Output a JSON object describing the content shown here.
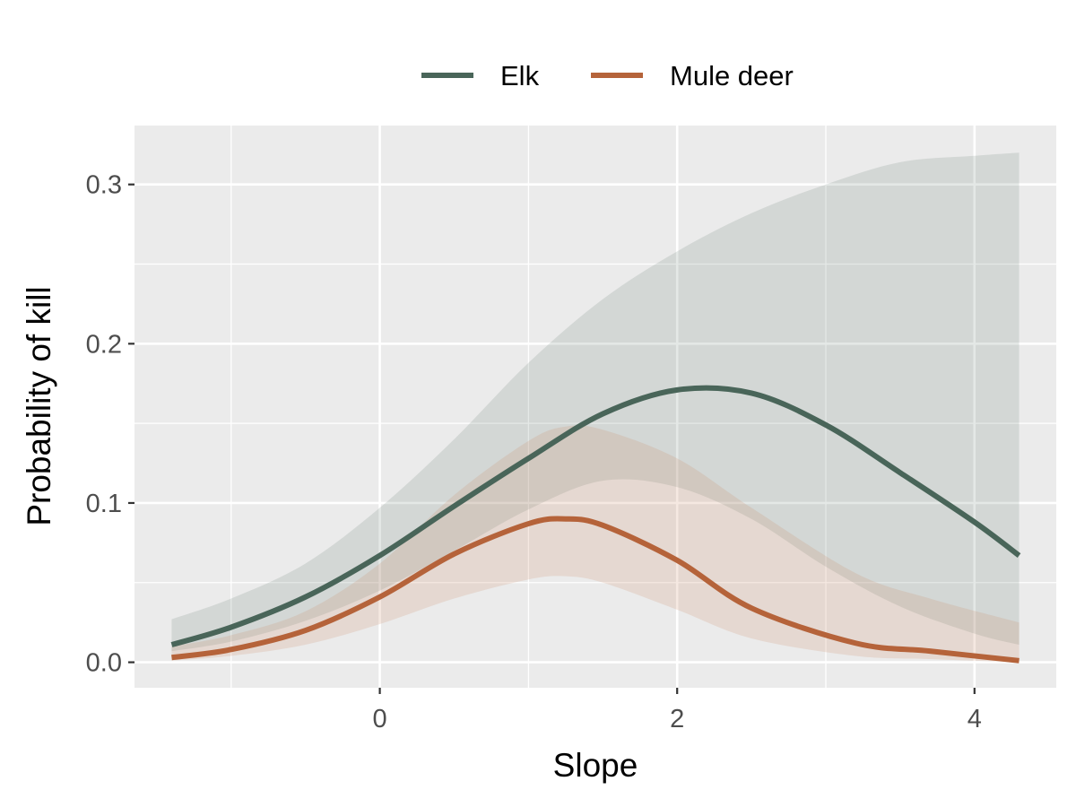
{
  "chart_data": {
    "type": "line",
    "xlabel": "Slope",
    "ylabel": "Probability of kill",
    "xlim": [
      -1.65,
      4.55
    ],
    "ylim": [
      -0.016,
      0.337
    ],
    "x_ticks": [
      0,
      2,
      4
    ],
    "x_tick_labels": [
      "0",
      "2",
      "4"
    ],
    "y_ticks": [
      0.0,
      0.1,
      0.2,
      0.3
    ],
    "y_tick_labels": [
      "0.0",
      "0.1",
      "0.2",
      "0.3"
    ],
    "grid": true,
    "legend_position": "top",
    "panel_background": "#ebebeb",
    "series": [
      {
        "name": "Elk",
        "color": "#496559",
        "ribbon_color": "#496559",
        "x": [
          -1.4,
          -1.0,
          -0.5,
          0.0,
          0.5,
          1.0,
          1.5,
          2.0,
          2.5,
          3.0,
          3.5,
          4.0,
          4.3
        ],
        "y": [
          0.011,
          0.022,
          0.041,
          0.067,
          0.098,
          0.128,
          0.156,
          0.171,
          0.169,
          0.149,
          0.119,
          0.088,
          0.067
        ],
        "lower": [
          0.007,
          0.013,
          0.026,
          0.045,
          0.07,
          0.096,
          0.114,
          0.11,
          0.09,
          0.06,
          0.035,
          0.018,
          0.011
        ],
        "upper": [
          0.027,
          0.04,
          0.062,
          0.097,
          0.14,
          0.188,
          0.228,
          0.258,
          0.282,
          0.3,
          0.314,
          0.318,
          0.32
        ]
      },
      {
        "name": "Mule deer",
        "color": "#b5633a",
        "ribbon_color": "#cc8a6a",
        "x": [
          -1.4,
          -1.0,
          -0.5,
          0.0,
          0.5,
          1.0,
          1.25,
          1.5,
          2.0,
          2.5,
          3.2,
          3.7,
          4.3
        ],
        "y": [
          0.003,
          0.008,
          0.02,
          0.041,
          0.068,
          0.087,
          0.09,
          0.086,
          0.064,
          0.034,
          0.012,
          0.007,
          0.001
        ],
        "lower": [
          0.001,
          0.004,
          0.011,
          0.024,
          0.04,
          0.052,
          0.054,
          0.05,
          0.033,
          0.015,
          0.004,
          0.002,
          0.0
        ],
        "upper": [
          0.01,
          0.017,
          0.032,
          0.062,
          0.105,
          0.139,
          0.148,
          0.146,
          0.128,
          0.097,
          0.056,
          0.04,
          0.025
        ]
      }
    ]
  }
}
